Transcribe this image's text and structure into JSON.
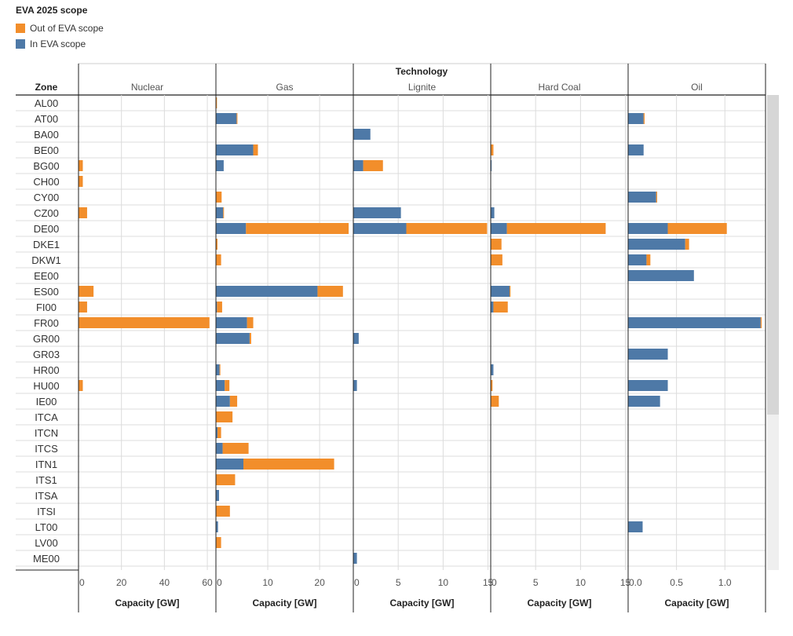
{
  "legend": {
    "title": "EVA 2025 scope",
    "items": [
      {
        "label": "Out of EVA scope",
        "color": "#F28E2B"
      },
      {
        "label": "In EVA scope",
        "color": "#4E79A7"
      }
    ]
  },
  "chart_data": {
    "type": "bar",
    "orientation": "horizontal",
    "stacked": true,
    "header": "Technology",
    "row_header": "Zone",
    "xlabel": "Capacity [GW]",
    "grid": true,
    "zones": [
      "AL00",
      "AT00",
      "BA00",
      "BE00",
      "BG00",
      "CH00",
      "CY00",
      "CZ00",
      "DE00",
      "DKE1",
      "DKW1",
      "EE00",
      "ES00",
      "FI00",
      "FR00",
      "GR00",
      "GR03",
      "HR00",
      "HU00",
      "IE00",
      "ITCA",
      "ITCN",
      "ITCS",
      "ITN1",
      "ITS1",
      "ITSA",
      "ITSI",
      "LT00",
      "LV00",
      "ME00"
    ],
    "panels": [
      {
        "name": "Nuclear",
        "xlim": [
          0,
          64
        ],
        "ticks": [
          0,
          20,
          40,
          60
        ],
        "series": [
          {
            "name": "In EVA scope",
            "color": "#4E79A7",
            "values": [
              0,
              0,
              0,
              0,
              0,
              0,
              0,
              0,
              0,
              0,
              0,
              0,
              0,
              0,
              0,
              0,
              0,
              0,
              0,
              0,
              0,
              0,
              0,
              0,
              0,
              0,
              0,
              0,
              0,
              0
            ]
          },
          {
            "name": "Out of EVA scope",
            "color": "#F28E2B",
            "values": [
              0,
              0,
              0,
              0,
              2,
              2,
              0,
              4,
              0,
              0,
              0,
              0,
              7,
              4,
              61,
              0,
              0,
              0,
              2,
              0,
              0,
              0,
              0,
              0,
              0,
              0,
              0,
              0,
              0,
              0
            ]
          }
        ]
      },
      {
        "name": "Gas",
        "xlim": [
          0,
          26.5
        ],
        "ticks": [
          0,
          10,
          20
        ],
        "series": [
          {
            "name": "In EVA scope",
            "color": "#4E79A7",
            "values": [
              0,
              4,
              0,
              7.2,
              1.5,
              0,
              0,
              1.4,
              5.8,
              0,
              0,
              0,
              19.6,
              0.2,
              6,
              6.5,
              0,
              0.7,
              1.7,
              2.7,
              0,
              0.3,
              1.3,
              5.3,
              0,
              0.6,
              0,
              0.4,
              0,
              0
            ]
          },
          {
            "name": "Out of EVA scope",
            "color": "#F28E2B",
            "values": [
              0.2,
              0.1,
              0,
              0.9,
              0,
              0,
              1.1,
              0.1,
              19.8,
              0.3,
              1,
              0,
              4.9,
              1,
              1.2,
              0.3,
              0,
              0.1,
              0.9,
              1.4,
              3.2,
              0.7,
              5,
              17.5,
              3.7,
              0,
              2.7,
              0,
              1,
              0
            ]
          }
        ]
      },
      {
        "name": "Lignite",
        "xlim": [
          0,
          15.3
        ],
        "ticks": [
          0,
          5,
          10,
          15
        ],
        "series": [
          {
            "name": "In EVA scope",
            "color": "#4E79A7",
            "values": [
              0,
              0,
              1.9,
              0,
              1.1,
              0,
              0,
              5.3,
              5.9,
              0,
              0,
              0,
              0,
              0,
              0,
              0.6,
              0,
              0,
              0.4,
              0,
              0,
              0,
              0,
              0,
              0,
              0,
              0,
              0,
              0,
              0.4
            ]
          },
          {
            "name": "Out of EVA scope",
            "color": "#F28E2B",
            "values": [
              0,
              0,
              0,
              0,
              2.2,
              0,
              0,
              0,
              9,
              0,
              0,
              0,
              0,
              0,
              0,
              0,
              0,
              0,
              0,
              0,
              0,
              0,
              0,
              0,
              0,
              0,
              0,
              0,
              0,
              0
            ]
          }
        ]
      },
      {
        "name": "Hard Coal",
        "xlim": [
          0,
          15.3
        ],
        "ticks": [
          0,
          5,
          10,
          15
        ],
        "series": [
          {
            "name": "In EVA scope",
            "color": "#4E79A7",
            "values": [
              0,
              0,
              0,
              0,
              0.1,
              0,
              0,
              0.4,
              1.8,
              0,
              0,
              0,
              2.1,
              0.3,
              0,
              0,
              0,
              0.3,
              0,
              0,
              0,
              0,
              0,
              0,
              0,
              0,
              0,
              0,
              0,
              0
            ]
          },
          {
            "name": "Out of EVA scope",
            "color": "#F28E2B",
            "values": [
              0,
              0,
              0,
              0.3,
              0,
              0,
              0,
              0,
              11,
              1.2,
              1.3,
              0,
              0.1,
              1.6,
              0,
              0,
              0,
              0,
              0.2,
              0.9,
              0,
              0,
              0,
              0,
              0,
              0,
              0,
              0,
              0,
              0
            ]
          }
        ]
      },
      {
        "name": "Oil",
        "xlim": [
          0,
          1.42
        ],
        "ticks": [
          0.0,
          0.5,
          1.0
        ],
        "series": [
          {
            "name": "In EVA scope",
            "color": "#4E79A7",
            "values": [
              0,
              0.16,
              0,
              0.16,
              0,
              0,
              0.29,
              0,
              0.41,
              0.59,
              0.19,
              0.68,
              0,
              0,
              1.37,
              0,
              0.41,
              0,
              0.41,
              0.33,
              0,
              0,
              0,
              0,
              0,
              0,
              0,
              0.15,
              0,
              0
            ]
          },
          {
            "name": "Out of EVA scope",
            "color": "#F28E2B",
            "values": [
              0,
              0.01,
              0,
              0,
              0,
              0,
              0.01,
              0,
              0.61,
              0.04,
              0.04,
              0,
              0,
              0,
              0.01,
              0,
              0,
              0,
              0,
              0,
              0,
              0,
              0,
              0,
              0,
              0,
              0,
              0,
              0,
              0
            ]
          }
        ]
      }
    ]
  }
}
